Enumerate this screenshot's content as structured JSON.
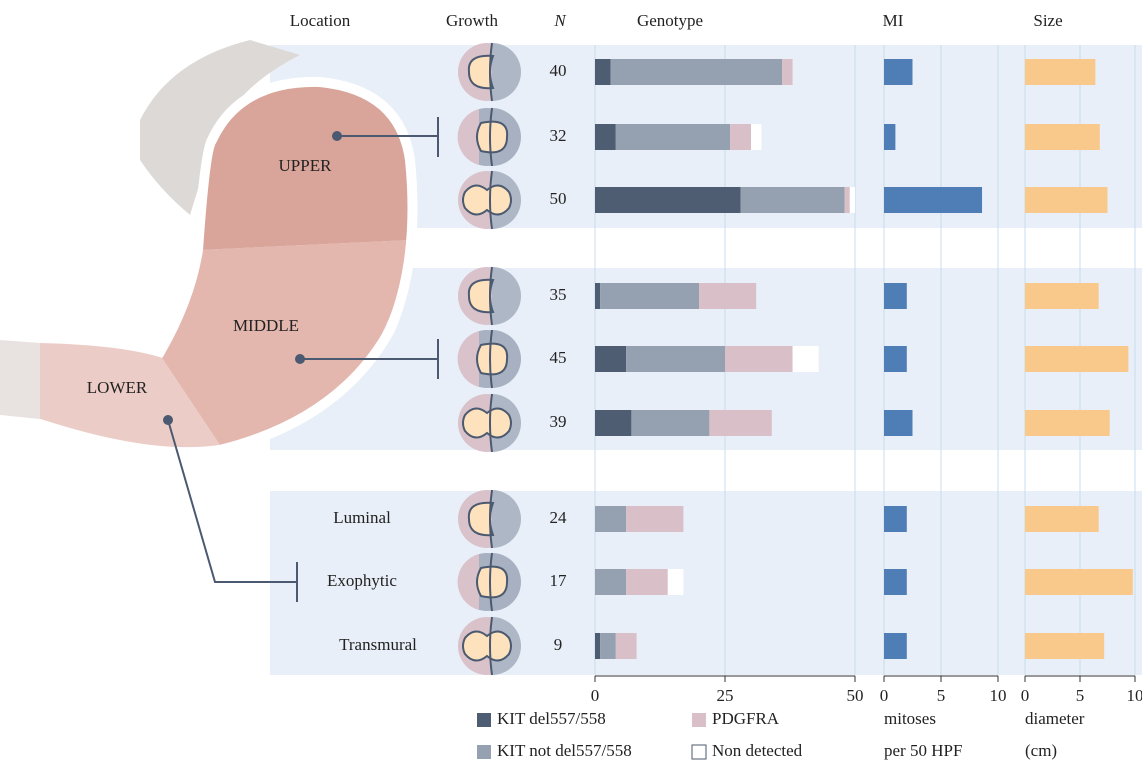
{
  "headers": {
    "location": "Location",
    "growth": "Growth",
    "n": "N"
  },
  "locations": [
    "UPPER",
    "MIDDLE",
    "LOWER"
  ],
  "growth_types": [
    "Luminal",
    "Exophytic",
    "Transmural"
  ],
  "n": [
    40,
    32,
    50,
    35,
    45,
    39,
    24,
    17,
    9
  ],
  "chart_data": [
    {
      "type": "stacked_bar",
      "title": "Genotype",
      "series": [
        {
          "name": "KIT del557/558",
          "color": "#4f5d72",
          "values": [
            3,
            4,
            28,
            1,
            6,
            7,
            0,
            0,
            1
          ]
        },
        {
          "name": "KIT not del557/558",
          "color": "#95a1b1",
          "values": [
            33,
            22,
            20,
            19,
            19,
            15,
            6,
            6,
            3
          ]
        },
        {
          "name": "PDGFRA",
          "color": "#d9c0c8",
          "values": [
            2,
            4,
            1,
            11,
            13,
            12,
            11,
            8,
            4
          ]
        },
        {
          "name": "Non detected",
          "color": "#ffffff",
          "values": [
            0,
            2,
            1,
            0,
            5,
            0,
            0,
            3,
            0
          ]
        }
      ],
      "xlim": [
        0,
        50
      ],
      "xticks": [
        0,
        25,
        50
      ],
      "grid": true
    },
    {
      "type": "bar",
      "title": "MI",
      "x_label": [
        "mitoses",
        "per 50 HPF"
      ],
      "color": "#4f7db5",
      "values": [
        2.5,
        1,
        8.6,
        2,
        2,
        2.5,
        2,
        2,
        2
      ],
      "xlim": [
        0,
        10
      ],
      "xticks": [
        0,
        5,
        10
      ],
      "grid": true
    },
    {
      "type": "bar",
      "title": "Size",
      "x_label": [
        "diameter",
        "(cm)"
      ],
      "color": "#f9c98b",
      "values": [
        6.4,
        6.8,
        7.5,
        6.7,
        9.4,
        7.7,
        6.7,
        9.8,
        7.2
      ],
      "xlim": [
        0,
        10
      ],
      "xticks": [
        0,
        5,
        10
      ],
      "grid": true
    }
  ]
}
